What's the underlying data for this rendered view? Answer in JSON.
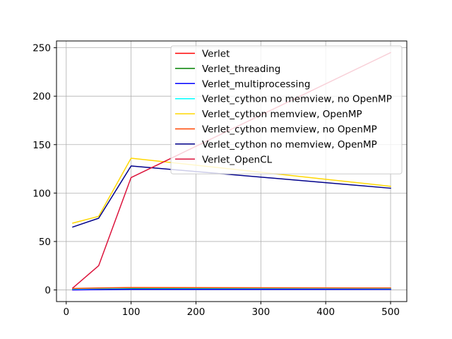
{
  "chart_data": {
    "type": "line",
    "title": "",
    "xlabel": "",
    "ylabel": "",
    "xlim": [
      -15,
      525
    ],
    "ylim": [
      -12,
      257
    ],
    "xticks": [
      0,
      100,
      200,
      300,
      400,
      500
    ],
    "yticks": [
      0,
      50,
      100,
      150,
      200,
      250
    ],
    "grid": true,
    "legend_position": "upper-right",
    "series": [
      {
        "name": "Verlet",
        "color": "#ff0000",
        "x": [
          10,
          50,
          100,
          500
        ],
        "y": [
          0.5,
          0.5,
          1,
          1
        ]
      },
      {
        "name": "Verlet_threading",
        "color": "#008000",
        "x": [
          10,
          50,
          100,
          500
        ],
        "y": [
          0.5,
          0.5,
          1,
          1
        ]
      },
      {
        "name": "Verlet_multiprocessing",
        "color": "#0000ff",
        "x": [
          10,
          50,
          100,
          500
        ],
        "y": [
          0,
          0.3,
          0.6,
          0.6
        ]
      },
      {
        "name": "Verlet_cython no memview, no OpenMP",
        "color": "#00ffff",
        "x": [
          10,
          50,
          100,
          500
        ],
        "y": [
          1,
          1.5,
          2,
          1.5
        ]
      },
      {
        "name": "Verlet_cython memview, OpenMP",
        "color": "#ffd700",
        "x": [
          10,
          50,
          100,
          500
        ],
        "y": [
          69,
          76,
          136,
          107
        ]
      },
      {
        "name": "Verlet_cython memview, no OpenMP",
        "color": "#ff4500",
        "x": [
          10,
          50,
          100,
          500
        ],
        "y": [
          1.5,
          2,
          2.5,
          2
        ]
      },
      {
        "name": "Verlet_cython no memview, OpenMP",
        "color": "#00008b",
        "x": [
          10,
          50,
          100,
          500
        ],
        "y": [
          65,
          74,
          128,
          105
        ]
      },
      {
        "name": "Verlet_OpenCL",
        "color": "#dc143c",
        "x": [
          10,
          50,
          100,
          500
        ],
        "y": [
          2,
          25,
          116,
          245
        ]
      }
    ]
  }
}
